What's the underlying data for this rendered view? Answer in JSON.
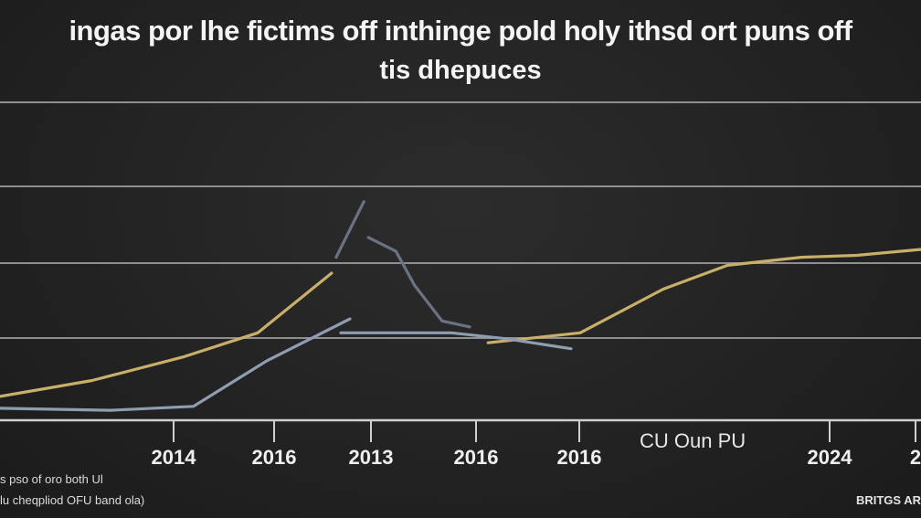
{
  "chart_data": {
    "type": "line",
    "title": "ingas por lhe fictims off inthinge pold holy ithsd ort puns off",
    "subtitle": "tis dhepuces",
    "xlabel": "CU Oun PU",
    "tick_labels": [
      "2014",
      "2016",
      "2013",
      "2016",
      "2016",
      "2024",
      "2"
    ],
    "grid": true,
    "series": [
      {
        "color": "#c8b06a",
        "segments": [
          [
            [
              0,
              0.6
            ],
            [
              1,
              1.0
            ],
            [
              2,
              1.6
            ],
            [
              2.8,
              2.2
            ],
            [
              3.6,
              3.7
            ]
          ],
          [
            [
              5.3,
              1.95
            ],
            [
              6.3,
              2.2
            ],
            [
              7.2,
              3.3
            ],
            [
              7.9,
              3.9
            ],
            [
              8.7,
              4.1
            ],
            [
              9.3,
              4.15
            ],
            [
              10,
              4.3
            ]
          ]
        ]
      },
      {
        "color": "#8f9db0",
        "segments": [
          [
            [
              0,
              0.3
            ],
            [
              1.2,
              0.25
            ],
            [
              2.1,
              0.35
            ],
            [
              2.9,
              1.5
            ],
            [
              3.8,
              2.55
            ]
          ],
          [
            [
              3.7,
              2.2
            ],
            [
              4.9,
              2.2
            ],
            [
              5.5,
              2.05
            ],
            [
              6.2,
              1.8
            ]
          ]
        ]
      },
      {
        "color": "#6a7382",
        "segments": [
          [
            [
              3.65,
              4.1
            ],
            [
              3.95,
              5.5
            ]
          ],
          [
            [
              4.0,
              4.6
            ],
            [
              4.3,
              4.25
            ],
            [
              4.5,
              3.4
            ],
            [
              4.8,
              2.5
            ],
            [
              5.1,
              2.35
            ]
          ]
        ]
      }
    ]
  },
  "footer": {
    "note1": "s pso of oro both Ul",
    "note2": "lu cheqpliod OFU band ola)",
    "source": "BRITGS AR"
  }
}
